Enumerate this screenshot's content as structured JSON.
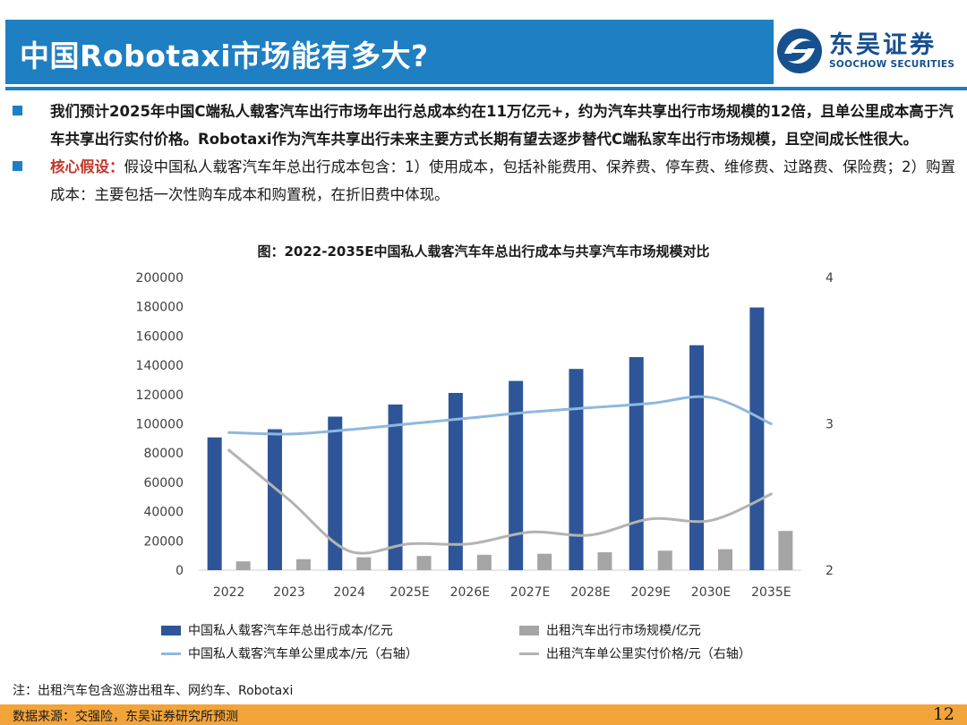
{
  "header": {
    "title": "中国Robotaxi市场能有多大?",
    "logo_cn": "东吴证券",
    "logo_en": "SOOCHOW SECURITIES"
  },
  "bullets": {
    "b1_text": "我们预计2025年中国C端私人载客汽车出行市场年出行总成本约在11万亿元+，约为汽车共享出行市场规模的12倍，且单公里成本高于汽车共享出行实付价格。Robotaxi作为汽车共享出行未来主要方式长期有望去逐步替代C端私家车出行市场规模，且空间成长性很大。",
    "b2_key": "核心假设：",
    "b2_text": "假设中国私人载客汽车年总出行成本包含：1）使用成本，包括补能费用、保养费、停车费、维修费、过路费、保险费；2）购置成本：主要包括一次性购车成本和购置税，在折旧费中体现。"
  },
  "chart_data": {
    "type": "bar",
    "title": "图：2022-2035E中国私人载客汽车年总出行成本与共享汽车市场规模对比",
    "categories": [
      "2022",
      "2023",
      "2024",
      "2025E",
      "2026E",
      "2027E",
      "2028E",
      "2029E",
      "2030E",
      "2035E"
    ],
    "left_axis": {
      "ylim": [
        0,
        200000
      ],
      "ticks": [
        "0",
        "20000",
        "40000",
        "60000",
        "80000",
        "100000",
        "120000",
        "140000",
        "160000",
        "180000",
        "200000"
      ]
    },
    "right_axis": {
      "ylim": [
        2,
        4
      ],
      "ticks": [
        "2",
        "3",
        "4"
      ]
    },
    "grid": false,
    "series": [
      {
        "name": "中国私人载客汽车年总出行成本/亿元",
        "kind": "bar",
        "axis": "left",
        "color": "#2e5597",
        "values": [
          90700,
          96300,
          104900,
          113200,
          121100,
          129300,
          137500,
          145600,
          153700,
          179500
        ]
      },
      {
        "name": "出租汽车出行市场规模/亿元",
        "kind": "bar",
        "axis": "left",
        "color": "#a5a5a5",
        "values": [
          6000,
          7500,
          8800,
          9700,
          10500,
          11200,
          12200,
          13300,
          14300,
          26800
        ]
      },
      {
        "name": "中国私人载客汽车单公里成本/元（右轴）",
        "kind": "line",
        "axis": "right",
        "color": "#8fb8de",
        "values": [
          2.94,
          2.93,
          2.96,
          3.0,
          3.04,
          3.08,
          3.11,
          3.14,
          3.18,
          3.0
        ]
      },
      {
        "name": "出租汽车单公里实付价格/元（右轴）",
        "kind": "line",
        "axis": "right",
        "color": "#b3b3b3",
        "values": [
          2.82,
          2.48,
          2.13,
          2.18,
          2.18,
          2.26,
          2.24,
          2.35,
          2.34,
          2.52
        ]
      }
    ],
    "legend_placement": "bottom"
  },
  "note": "注：出租汽车包含巡游出租车、网约车、Robotaxi",
  "source": "数据来源：交强险，东吴证券研究所预测",
  "page_number": "12"
}
